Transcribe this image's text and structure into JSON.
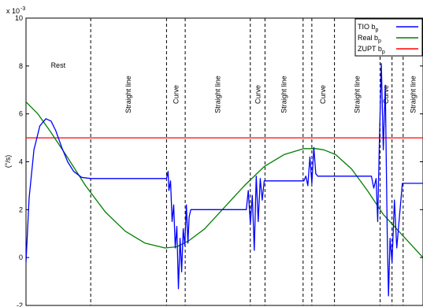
{
  "chart_data": {
    "type": "line",
    "ylabel": "(°/s)",
    "yexp": "x 10",
    "yexp_power": "-3",
    "ylim": [
      -2,
      10
    ],
    "y_ticks": [
      -2,
      0,
      2,
      4,
      6,
      8,
      10
    ],
    "xlim": [
      0,
      1
    ],
    "grid": false,
    "legend_position": "top-right",
    "legend": [
      {
        "base": "TIO b",
        "sub": "p",
        "color": "#0000ff"
      },
      {
        "base": "Real b",
        "sub": "p",
        "color": "#007f00"
      },
      {
        "base": "ZUPT b",
        "sub": "p",
        "color": "#ff0000"
      }
    ],
    "phase_boundaries": [
      0.163,
      0.354,
      0.401,
      0.565,
      0.602,
      0.698,
      0.72,
      0.777,
      0.892,
      0.922,
      0.95
    ],
    "phases": [
      {
        "label": "Rest",
        "x_center": 0.081,
        "orientation": "horizontal"
      },
      {
        "label": "Straight line",
        "x_center": 0.258,
        "orientation": "vertical"
      },
      {
        "label": "Curve",
        "x_center": 0.378,
        "orientation": "vertical"
      },
      {
        "label": "Straight line",
        "x_center": 0.483,
        "orientation": "vertical"
      },
      {
        "label": "Curve",
        "x_center": 0.584,
        "orientation": "vertical"
      },
      {
        "label": "Straight line",
        "x_center": 0.65,
        "orientation": "vertical"
      },
      {
        "label": "Curve",
        "x_center": 0.748,
        "orientation": "vertical"
      },
      {
        "label": "Straight line",
        "x_center": 0.834,
        "orientation": "vertical"
      },
      {
        "label": "Curve",
        "x_center": 0.907,
        "orientation": "vertical"
      },
      {
        "label": "Straight line",
        "x_center": 0.975,
        "orientation": "vertical"
      }
    ],
    "series": [
      {
        "name": "TIO b_p",
        "color": "#0000ff",
        "x": [
          0.0,
          0.008,
          0.02,
          0.035,
          0.05,
          0.063,
          0.075,
          0.09,
          0.105,
          0.12,
          0.14,
          0.163,
          0.2,
          0.3,
          0.354,
          0.358,
          0.36,
          0.364,
          0.368,
          0.372,
          0.376,
          0.38,
          0.384,
          0.388,
          0.392,
          0.396,
          0.4,
          0.404,
          0.408,
          0.411,
          0.415,
          0.45,
          0.5,
          0.555,
          0.56,
          0.565,
          0.57,
          0.575,
          0.58,
          0.585,
          0.59,
          0.595,
          0.6,
          0.605,
          0.61,
          0.66,
          0.7,
          0.705,
          0.71,
          0.715,
          0.72,
          0.725,
          0.73,
          0.735,
          0.74,
          0.8,
          0.87,
          0.876,
          0.882,
          0.886,
          0.89,
          0.895,
          0.9,
          0.905,
          0.91,
          0.913,
          0.917,
          0.922,
          0.928,
          0.934,
          0.94,
          0.948,
          0.955,
          1.0
        ],
        "y": [
          -0.2,
          2.5,
          4.5,
          5.5,
          5.8,
          5.7,
          5.3,
          4.6,
          4.0,
          3.6,
          3.35,
          3.3,
          3.3,
          3.3,
          3.3,
          3.6,
          2.8,
          3.2,
          1.5,
          2.2,
          0.4,
          1.3,
          -1.3,
          0.8,
          -0.6,
          1.2,
          0.5,
          2.2,
          0.6,
          1.7,
          2.0,
          2.0,
          2.0,
          2.0,
          2.8,
          1.4,
          2.6,
          0.3,
          3.4,
          1.5,
          3.3,
          2.4,
          3.2,
          3.2,
          3.2,
          3.2,
          3.2,
          3.4,
          3.0,
          4.2,
          3.1,
          4.6,
          3.5,
          3.4,
          3.4,
          3.4,
          3.4,
          2.9,
          3.3,
          1.5,
          4.8,
          8.1,
          4.5,
          7.2,
          1.0,
          -1.6,
          0.8,
          -0.2,
          2.4,
          0.4,
          1.6,
          3.1,
          3.1,
          3.1
        ]
      },
      {
        "name": "Real b_p",
        "color": "#007f00",
        "x": [
          0.0,
          0.03,
          0.06,
          0.1,
          0.15,
          0.2,
          0.25,
          0.3,
          0.35,
          0.38,
          0.41,
          0.45,
          0.5,
          0.55,
          0.6,
          0.65,
          0.7,
          0.73,
          0.75,
          0.78,
          0.82,
          0.86,
          0.9,
          0.95,
          1.0
        ],
        "y": [
          6.5,
          6.0,
          5.3,
          4.3,
          3.0,
          1.9,
          1.1,
          0.6,
          0.4,
          0.45,
          0.7,
          1.2,
          2.1,
          3.0,
          3.8,
          4.3,
          4.55,
          4.55,
          4.5,
          4.3,
          3.7,
          2.8,
          1.8,
          0.9,
          0.0
        ]
      },
      {
        "name": "ZUPT b_p",
        "color": "#ff0000",
        "x": [
          0.0,
          1.0
        ],
        "y": [
          5.0,
          5.0
        ]
      }
    ]
  }
}
